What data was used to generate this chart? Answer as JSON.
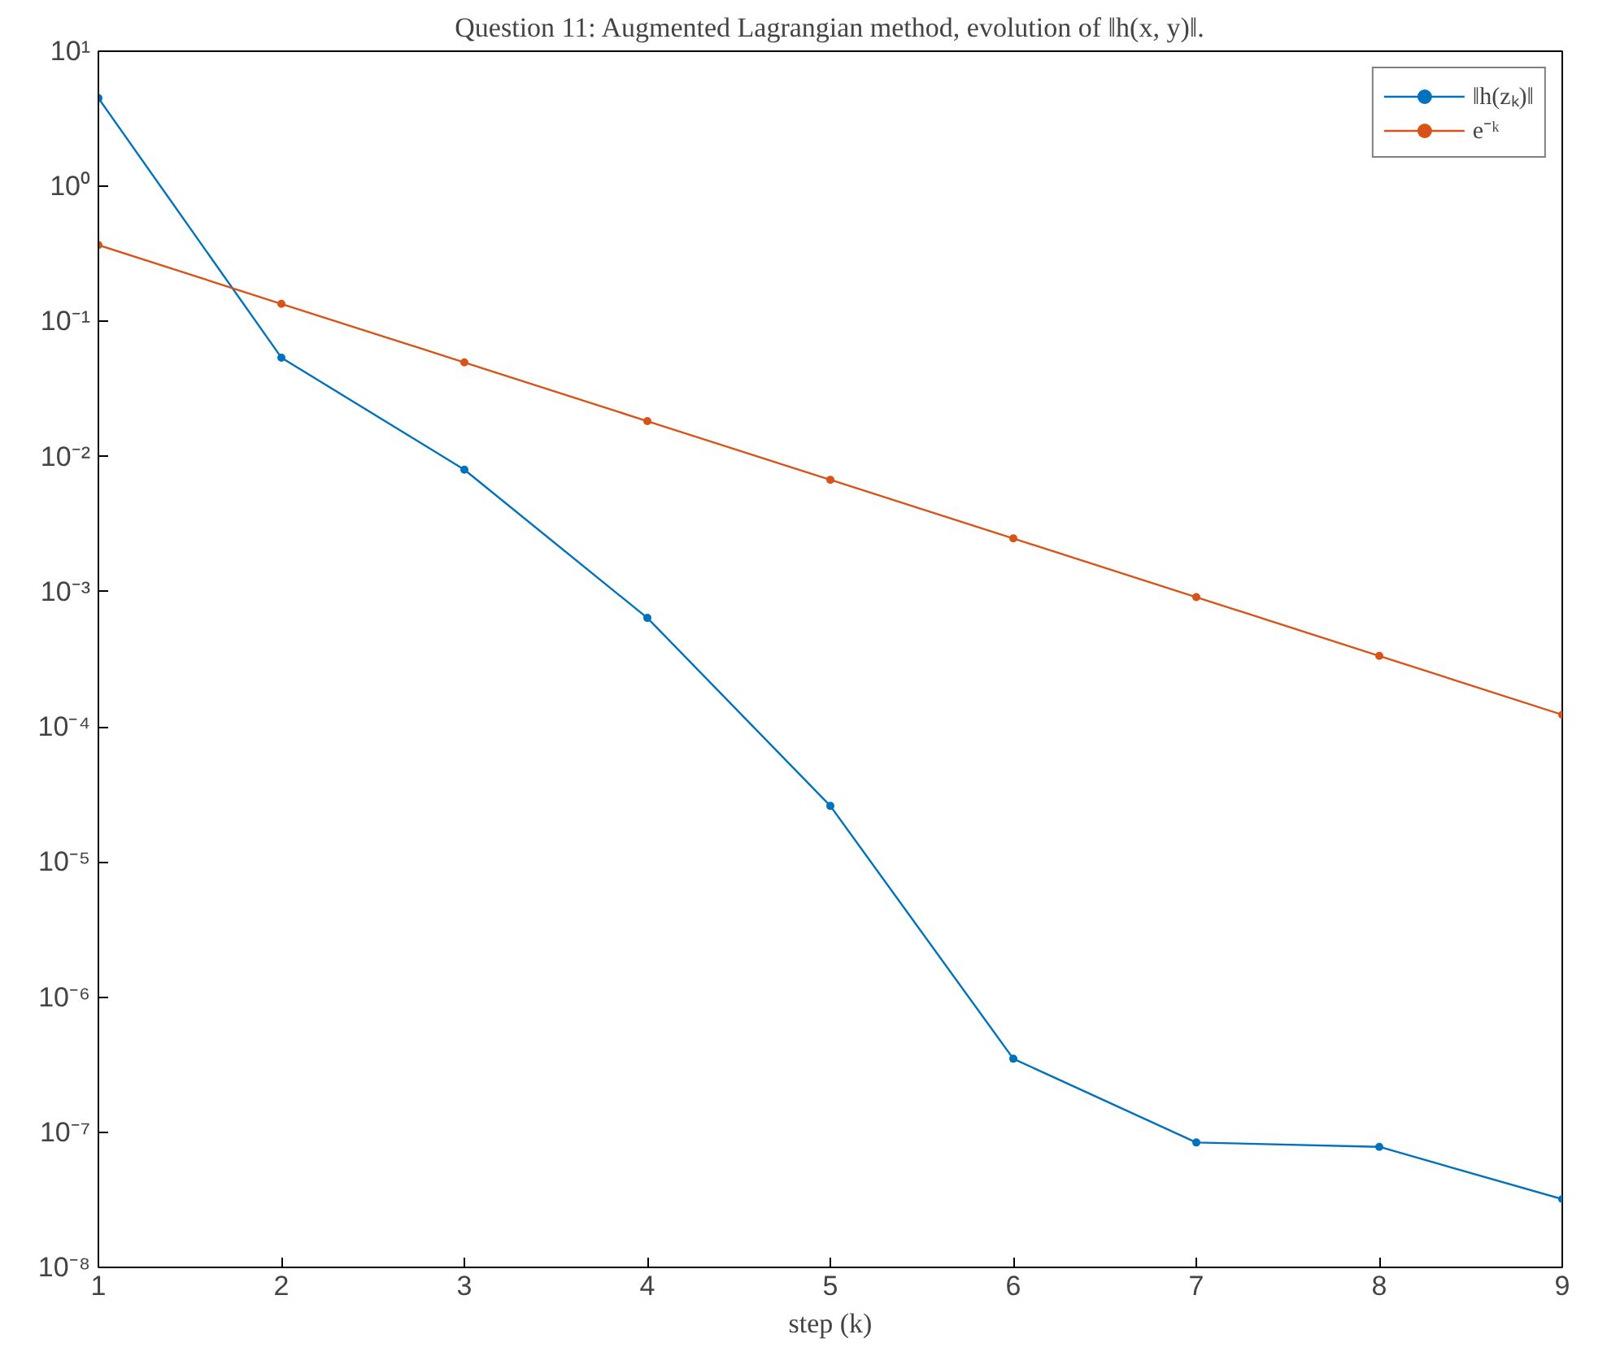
{
  "chart_data": {
    "type": "line",
    "title": "Question 11: Augmented Lagrangian method, evolution of ‖h(x, y)‖.",
    "xlabel": "step (k)",
    "x": [
      1,
      2,
      3,
      4,
      5,
      6,
      7,
      8,
      9
    ],
    "series": [
      {
        "name": "‖h(zₖ)‖",
        "color": "#0072bd",
        "values": [
          4.5,
          0.054,
          0.008,
          0.00064,
          2.6e-05,
          3.5e-07,
          8.4e-08,
          7.8e-08,
          3.2e-08
        ]
      },
      {
        "name": "e⁻ᵏ",
        "color": "#d95319",
        "values": [
          0.368,
          0.135,
          0.0498,
          0.0183,
          0.00674,
          0.00248,
          0.000912,
          0.000335,
          0.000123
        ]
      }
    ],
    "log": "y",
    "xlim": [
      1,
      9
    ],
    "ylim": [
      1e-08,
      10
    ],
    "xticks": [
      1,
      2,
      3,
      4,
      5,
      6,
      7,
      8,
      9
    ],
    "yticks": [
      {
        "value": 1e-08,
        "label": "10⁻⁸"
      },
      {
        "value": 1e-07,
        "label": "10⁻⁷"
      },
      {
        "value": 1e-06,
        "label": "10⁻⁶"
      },
      {
        "value": 1e-05,
        "label": "10⁻⁵"
      },
      {
        "value": 0.0001,
        "label": "10⁻⁴"
      },
      {
        "value": 0.001,
        "label": "10⁻³"
      },
      {
        "value": 0.01,
        "label": "10⁻²"
      },
      {
        "value": 0.1,
        "label": "10⁻¹"
      },
      {
        "value": 1,
        "label": "10⁰"
      },
      {
        "value": 10,
        "label": "10¹"
      }
    ],
    "grid": false,
    "legend": "top right",
    "marker": "circle",
    "line_style": "solid"
  }
}
